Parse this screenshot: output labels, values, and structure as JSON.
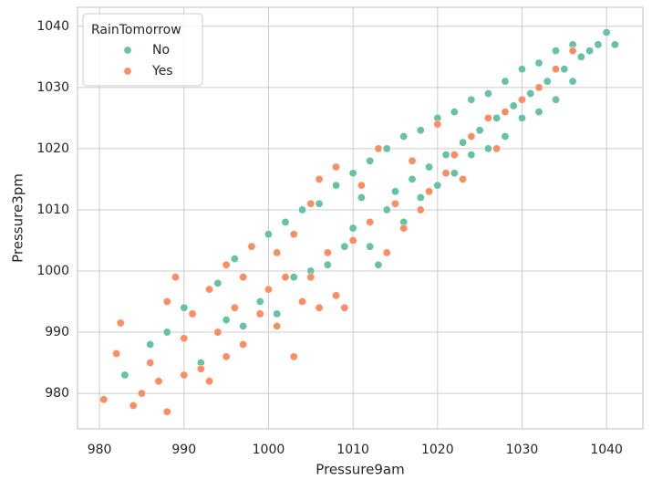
{
  "chart_data": {
    "type": "scatter",
    "x_label": "Pressure9am",
    "y_label": "Pressure3pm",
    "legend_title": "RainTomorrow",
    "legend_position": "upper left",
    "grid": true,
    "xlim": [
      977.4,
      1044.3
    ],
    "ylim": [
      974.2,
      1043.1
    ],
    "xticks": [
      980,
      990,
      1000,
      1010,
      1020,
      1030,
      1040
    ],
    "yticks": [
      980,
      990,
      1000,
      1010,
      1020,
      1030,
      1040
    ],
    "series": [
      {
        "name": "No",
        "color": "#66c2a5",
        "x": [
          983,
          986,
          988,
          990,
          992,
          994,
          995,
          996,
          997,
          998,
          999,
          1000,
          1001,
          1002,
          1003,
          1004,
          1005,
          1006,
          1007,
          1008,
          1009,
          1010,
          1010,
          1011,
          1012,
          1012,
          1013,
          1014,
          1014,
          1015,
          1016,
          1016,
          1017,
          1018,
          1018,
          1019,
          1020,
          1020,
          1021,
          1022,
          1022,
          1023,
          1024,
          1024,
          1025,
          1026,
          1026,
          1027,
          1028,
          1028,
          1029,
          1030,
          1030,
          1031,
          1032,
          1032,
          1033,
          1034,
          1034,
          1035,
          1036,
          1036,
          1037,
          1038,
          1039,
          1040,
          1041
        ],
        "values": [
          983,
          988,
          990,
          994,
          985,
          998,
          992,
          1002,
          991,
          1004,
          995,
          1006,
          993,
          1008,
          999,
          1010,
          1000,
          1011,
          1001,
          1014,
          1004,
          1016,
          1007,
          1012,
          1018,
          1004,
          1001,
          1020,
          1010,
          1013,
          1022,
          1008,
          1015,
          1023,
          1012,
          1017,
          1025,
          1014,
          1019,
          1026,
          1016,
          1021,
          1028,
          1019,
          1023,
          1029,
          1020,
          1025,
          1031,
          1022,
          1027,
          1033,
          1025,
          1029,
          1034,
          1026,
          1031,
          1036,
          1028,
          1033,
          1037,
          1031,
          1035,
          1036,
          1037,
          1039,
          1037
        ]
      },
      {
        "name": "Yes",
        "color": "#fc8d62",
        "x": [
          980.5,
          982,
          982.5,
          984,
          985,
          986,
          987,
          988,
          988,
          989,
          990,
          990,
          991,
          992,
          993,
          993,
          994,
          995,
          995,
          996,
          997,
          997,
          998,
          999,
          1000,
          1001,
          1001,
          1002,
          1003,
          1003,
          1004,
          1005,
          1005,
          1006,
          1006,
          1007,
          1008,
          1008,
          1009,
          1010,
          1011,
          1012,
          1013,
          1014,
          1015,
          1016,
          1017,
          1018,
          1019,
          1020,
          1021,
          1022,
          1023,
          1024,
          1026,
          1027,
          1028,
          1030,
          1032,
          1034,
          1036
        ],
        "values": [
          979,
          986.5,
          991.5,
          978,
          980,
          985,
          982,
          977,
          995,
          999,
          983,
          989,
          993,
          984,
          997,
          982,
          990,
          1001,
          986,
          994,
          999,
          988,
          1004,
          993,
          997,
          1003,
          991,
          999,
          986,
          1006,
          995,
          1011,
          999,
          1015,
          994,
          1003,
          1017,
          996,
          994,
          1005,
          1014,
          1008,
          1020,
          1003,
          1011,
          1007,
          1018,
          1010,
          1013,
          1024,
          1016,
          1019,
          1015,
          1022,
          1025,
          1020,
          1026,
          1028,
          1030,
          1033,
          1036
        ]
      }
    ]
  }
}
